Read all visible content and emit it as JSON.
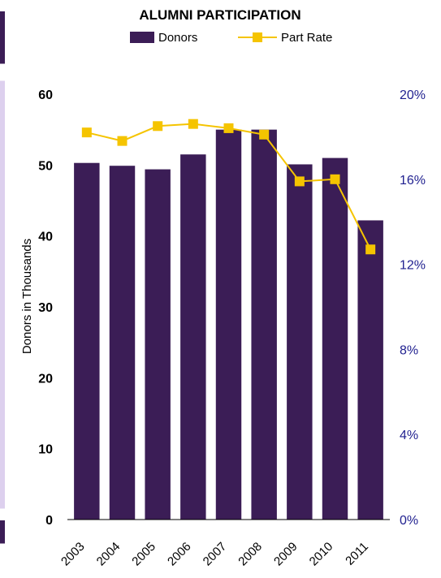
{
  "chart_data": {
    "type": "bar",
    "title": "ALUMNI PARTICIPATION",
    "ylabel": "Donors in Thousands",
    "xlabel": "",
    "categories": [
      "2003",
      "2004",
      "2005",
      "2006",
      "2007",
      "2008",
      "2009",
      "2010",
      "2011"
    ],
    "series": [
      {
        "name": "Donors",
        "type": "bar",
        "axis": "left",
        "values": [
          50.3,
          49.9,
          49.4,
          51.5,
          55.0,
          55.0,
          50.1,
          51.0,
          42.2
        ]
      },
      {
        "name": "Part Rate",
        "type": "line",
        "axis": "right",
        "values": [
          18.2,
          17.8,
          18.5,
          18.6,
          18.4,
          18.1,
          15.9,
          16.0,
          12.7
        ]
      }
    ],
    "ylim": [
      0,
      60
    ],
    "y2lim": [
      0,
      20
    ],
    "yticks": [
      "0",
      "10",
      "20",
      "30",
      "40",
      "50",
      "60"
    ],
    "y2ticks": [
      "0%",
      "4%",
      "8%",
      "12%",
      "16%",
      "20%"
    ],
    "legend_position": "top",
    "grid": false,
    "colors": {
      "bar": "#3b1d56",
      "line": "#f5c400",
      "right_axis_text": "#1f1f8f"
    }
  }
}
